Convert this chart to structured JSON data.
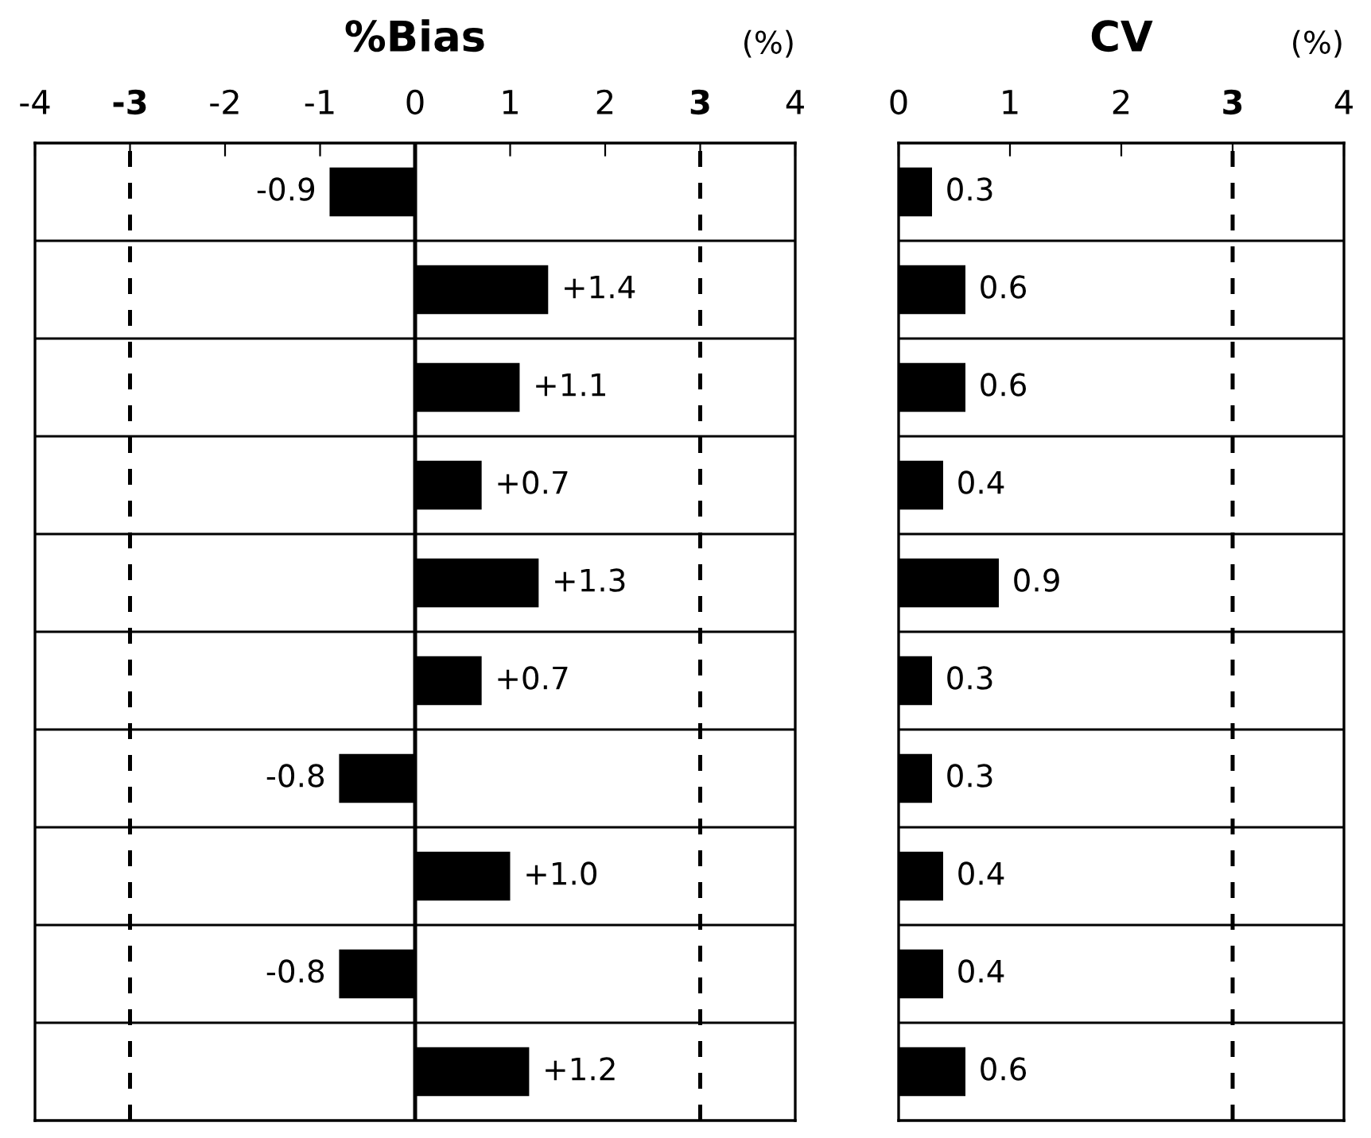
{
  "chart_data": [
    {
      "type": "bar",
      "orientation": "horizontal",
      "title": "%Bias",
      "xlabel": "(%)",
      "categories": [
        null,
        null,
        null,
        null,
        null,
        null,
        null,
        null,
        null,
        null
      ],
      "values": [
        -0.9,
        1.4,
        1.1,
        0.7,
        1.3,
        0.7,
        -0.8,
        1.0,
        -0.8,
        1.2
      ],
      "value_labels": [
        "-0.9",
        "+1.4",
        "+1.1",
        "+0.7",
        "+1.3",
        "+0.7",
        "-0.8",
        "+1.0",
        "-0.8",
        "+1.2"
      ],
      "color": "#000000",
      "xlim": [
        -4,
        4
      ],
      "xticks": [
        -4,
        -3,
        -2,
        -1,
        0,
        1,
        2,
        3,
        4
      ],
      "ref_lines": [
        {
          "axis": "x",
          "value": -3,
          "line_style": "dashed",
          "color": "#000000"
        },
        {
          "axis": "x",
          "value": 3,
          "line_style": "dashed",
          "color": "#000000"
        },
        {
          "axis": "x",
          "value": 0,
          "line_style": "solid",
          "color": "#000000"
        }
      ],
      "grid": "y",
      "tick_labels": "x",
      "legend": false
    },
    {
      "type": "bar",
      "orientation": "horizontal",
      "title": "CV",
      "xlabel": "(%)",
      "categories": [
        null,
        null,
        null,
        null,
        null,
        null,
        null,
        null,
        null,
        null
      ],
      "values": [
        0.3,
        0.6,
        0.6,
        0.4,
        0.9,
        0.3,
        0.3,
        0.4,
        0.4,
        0.6
      ],
      "data_labels": true,
      "color": "#000000",
      "xlim": [
        0,
        4
      ],
      "xticks": [
        0,
        1,
        2,
        3,
        4
      ],
      "ref_lines": [
        {
          "axis": "x",
          "value": 3,
          "line_style": "dashed",
          "color": "#000000"
        }
      ],
      "grid": "y",
      "tick_labels": "x",
      "legend": false
    }
  ]
}
